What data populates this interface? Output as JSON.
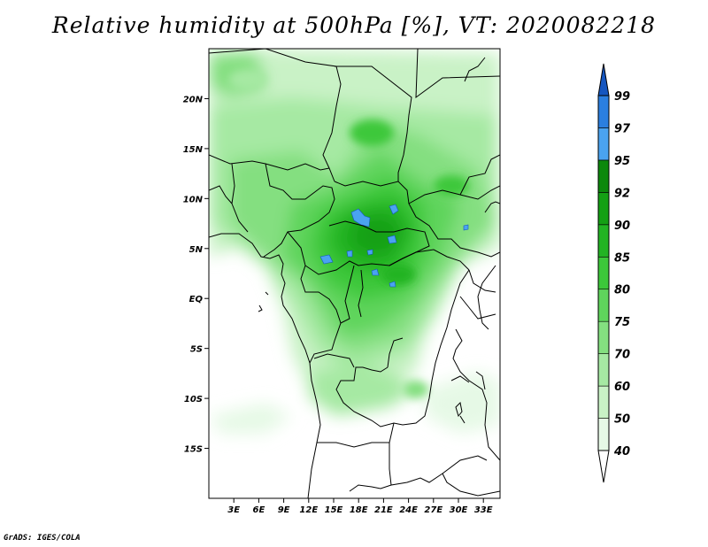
{
  "title": "Relative humidity at 500hPa [%], VT: 2020082218",
  "footer": "GrADS: IGES/COLA",
  "map": {
    "lat_ticks": [
      "20N",
      "15N",
      "10N",
      "5N",
      "EQ",
      "5S",
      "10S",
      "15S"
    ],
    "lat_values": [
      20,
      15,
      10,
      5,
      0,
      -5,
      -10,
      -15
    ],
    "lon_ticks": [
      "3E",
      "6E",
      "9E",
      "12E",
      "15E",
      "18E",
      "21E",
      "24E",
      "27E",
      "30E",
      "33E"
    ],
    "lon_values": [
      3,
      6,
      9,
      12,
      15,
      18,
      21,
      24,
      27,
      30,
      33
    ],
    "lon_range": [
      0,
      35
    ],
    "lat_range": [
      -20,
      25
    ]
  },
  "colorbar": {
    "levels": [
      "40",
      "50",
      "60",
      "70",
      "75",
      "80",
      "85",
      "90",
      "92",
      "95",
      "97",
      "99"
    ],
    "colors": [
      "#ffffff",
      "#e6f9e6",
      "#c9f2c6",
      "#a6e9a3",
      "#84df80",
      "#5fd45c",
      "#3cc83a",
      "#22b423",
      "#14a014",
      "#0c880c",
      "#4aa3f0",
      "#2b7fe0",
      "#1556c0"
    ]
  }
}
